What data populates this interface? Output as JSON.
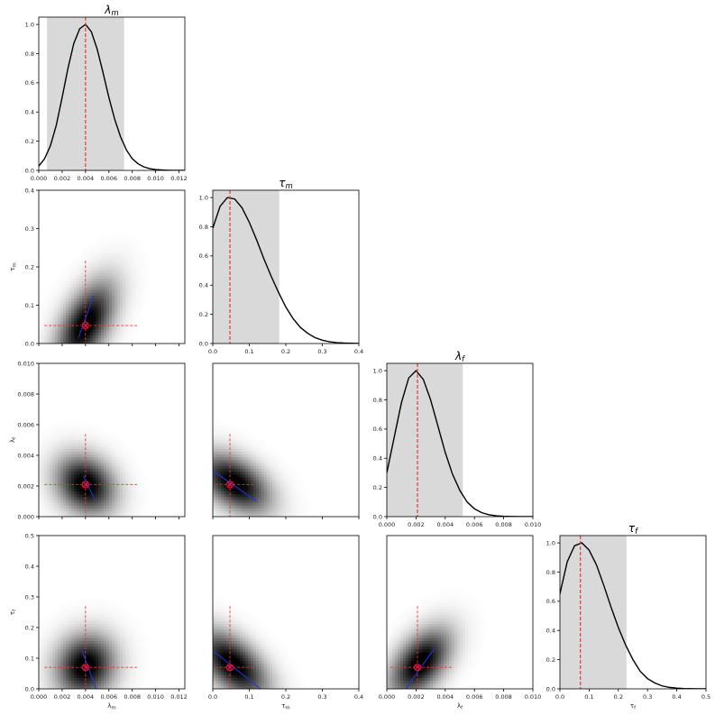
{
  "figure": {
    "type": "corner-plot"
  },
  "colors": {
    "curve": "#000000",
    "shade": "#d9d9d9",
    "marker": "#e8143c",
    "crosshair": "#e23b3b",
    "fisher_line": "#2036d0",
    "frame": "#000000"
  },
  "params": [
    {
      "title": "λm",
      "axis_label": "λm",
      "lim": [
        0,
        0.0125
      ],
      "ticks": [
        0,
        0.002,
        0.004,
        0.006,
        0.008,
        0.01,
        0.012
      ],
      "tick_labels": [
        "0.000",
        "0.002",
        "0.004",
        "0.006",
        "0.008",
        "0.010",
        "0.012"
      ],
      "best": 0.004,
      "band": [
        0.0007,
        0.0073
      ]
    },
    {
      "title": "τm",
      "axis_label": "τm",
      "lim": [
        0,
        0.4
      ],
      "ticks": [
        0,
        0.1,
        0.2,
        0.3,
        0.4
      ],
      "tick_labels": [
        "0.0",
        "0.1",
        "0.2",
        "0.3",
        "0.4"
      ],
      "best": 0.047,
      "band": [
        0,
        0.182
      ]
    },
    {
      "title": "λf",
      "axis_label": "λf",
      "lim": [
        0,
        0.01
      ],
      "ticks": [
        0,
        0.002,
        0.004,
        0.006,
        0.008,
        0.01
      ],
      "tick_labels": [
        "0.000",
        "0.002",
        "0.004",
        "0.006",
        "0.008",
        "0.010"
      ],
      "best": 0.0021,
      "band": [
        0,
        0.0052
      ]
    },
    {
      "title": "τf",
      "axis_label": "τf",
      "lim": [
        0,
        0.5
      ],
      "ticks": [
        0,
        0.1,
        0.2,
        0.3,
        0.4,
        0.5
      ],
      "tick_labels": [
        "0.0",
        "0.1",
        "0.2",
        "0.3",
        "0.4",
        "0.5"
      ],
      "best": 0.07,
      "band": [
        0,
        0.228
      ]
    }
  ],
  "chart_data": [
    {
      "type": "line",
      "title": "λm",
      "x_param": "λm",
      "ylim": [
        0,
        1.05
      ],
      "yticks": [
        "0.0",
        "0.2",
        "0.4",
        "0.6",
        "0.8",
        "1.0"
      ],
      "x": [
        0,
        0.0005,
        0.001,
        0.0015,
        0.002,
        0.0025,
        0.003,
        0.0035,
        0.004,
        0.0045,
        0.005,
        0.0055,
        0.006,
        0.0065,
        0.007,
        0.0075,
        0.008,
        0.0085,
        0.009,
        0.0095,
        0.01,
        0.0105,
        0.011,
        0.0115,
        0.012,
        0.0125
      ],
      "y": [
        0.03,
        0.08,
        0.17,
        0.31,
        0.5,
        0.7,
        0.87,
        0.97,
        1.0,
        0.95,
        0.83,
        0.67,
        0.5,
        0.35,
        0.23,
        0.14,
        0.08,
        0.045,
        0.024,
        0.012,
        0.006,
        0.003,
        0.0014,
        0.0007,
        0.0003,
        0.0001
      ]
    },
    {
      "type": "line",
      "title": "τm",
      "x_param": "τm",
      "ylim": [
        0,
        1.05
      ],
      "yticks": [
        "0.0",
        "0.2",
        "0.4",
        "0.6",
        "0.8",
        "1.0"
      ],
      "x": [
        0,
        0.02,
        0.04,
        0.06,
        0.08,
        0.1,
        0.12,
        0.14,
        0.16,
        0.18,
        0.2,
        0.22,
        0.24,
        0.26,
        0.28,
        0.3,
        0.32,
        0.34,
        0.36,
        0.38,
        0.4
      ],
      "y": [
        0.79,
        0.94,
        1.0,
        0.99,
        0.93,
        0.83,
        0.71,
        0.58,
        0.46,
        0.35,
        0.25,
        0.17,
        0.11,
        0.07,
        0.04,
        0.023,
        0.012,
        0.006,
        0.003,
        0.0015,
        0.0007
      ]
    },
    {
      "type": "line",
      "title": "λf",
      "x_param": "λf",
      "ylim": [
        0,
        1.05
      ],
      "yticks": [
        "0.0",
        "0.2",
        "0.4",
        "0.6",
        "0.8",
        "1.0"
      ],
      "x": [
        0,
        0.0005,
        0.001,
        0.0015,
        0.002,
        0.0025,
        0.003,
        0.0035,
        0.004,
        0.0045,
        0.005,
        0.0055,
        0.006,
        0.0065,
        0.007,
        0.0075,
        0.008,
        0.0085,
        0.009,
        0.0095,
        0.01
      ],
      "y": [
        0.3,
        0.54,
        0.78,
        0.95,
        1.0,
        0.94,
        0.8,
        0.62,
        0.44,
        0.29,
        0.18,
        0.1,
        0.054,
        0.027,
        0.013,
        0.006,
        0.0027,
        0.0012,
        0.0005,
        0.0002,
        0.0001
      ]
    },
    {
      "type": "line",
      "title": "τf",
      "x_param": "τf",
      "ylim": [
        0,
        1.05
      ],
      "yticks": [
        "0.0",
        "0.2",
        "0.4",
        "0.6",
        "0.8",
        "1.0"
      ],
      "x": [
        0,
        0.025,
        0.05,
        0.075,
        0.1,
        0.125,
        0.15,
        0.175,
        0.2,
        0.225,
        0.25,
        0.275,
        0.3,
        0.325,
        0.35,
        0.375,
        0.4,
        0.425,
        0.45,
        0.475,
        0.5
      ],
      "y": [
        0.65,
        0.87,
        0.98,
        1.0,
        0.95,
        0.85,
        0.71,
        0.56,
        0.42,
        0.3,
        0.2,
        0.12,
        0.07,
        0.04,
        0.02,
        0.01,
        0.005,
        0.002,
        0.001,
        0.0004,
        0.0002
      ]
    },
    {
      "type": "heatmap",
      "x_param": "λm",
      "y_param": "τm",
      "center": [
        0.004,
        0.05
      ],
      "sigma": [
        0.0017,
        0.075
      ],
      "corr": 0.55,
      "best": [
        0.004,
        0.047
      ],
      "fisher_line": [
        [
          0.0034,
          0.015
        ],
        [
          0.0047,
          0.125
        ]
      ]
    },
    {
      "type": "heatmap",
      "x_param": "λm",
      "y_param": "λf",
      "center": [
        0.004,
        0.0021
      ],
      "sigma": [
        0.0017,
        0.0013
      ],
      "corr": -0.2,
      "best": [
        0.004,
        0.0021
      ],
      "fisher_line": [
        [
          0.0038,
          0.0027
        ],
        [
          0.0048,
          0.0011
        ]
      ]
    },
    {
      "type": "heatmap",
      "x_param": "τm",
      "y_param": "λf",
      "center": [
        0.06,
        0.0022
      ],
      "sigma": [
        0.065,
        0.0013
      ],
      "corr": -0.45,
      "best": [
        0.047,
        0.0021
      ],
      "fisher_line": [
        [
          0.0,
          0.003
        ],
        [
          0.12,
          0.001
        ]
      ]
    },
    {
      "type": "heatmap",
      "x_param": "λm",
      "y_param": "τf",
      "center": [
        0.004,
        0.075
      ],
      "sigma": [
        0.0017,
        0.07
      ],
      "corr": 0.1,
      "best": [
        0.004,
        0.07
      ],
      "fisher_line": [
        [
          0.0037,
          0.125
        ],
        [
          0.0049,
          0.0
        ]
      ]
    },
    {
      "type": "heatmap",
      "x_param": "τm",
      "y_param": "τf",
      "center": [
        0.055,
        0.08
      ],
      "sigma": [
        0.065,
        0.075
      ],
      "corr": -0.55,
      "best": [
        0.047,
        0.07
      ],
      "fisher_line": [
        [
          0.0,
          0.125
        ],
        [
          0.13,
          0.0
        ]
      ]
    },
    {
      "type": "heatmap",
      "x_param": "λf",
      "y_param": "τf",
      "center": [
        0.0023,
        0.085
      ],
      "sigma": [
        0.0014,
        0.075
      ],
      "corr": 0.5,
      "best": [
        0.0021,
        0.07
      ],
      "fisher_line": [
        [
          0.0013,
          0.0
        ],
        [
          0.0033,
          0.135
        ]
      ]
    }
  ]
}
